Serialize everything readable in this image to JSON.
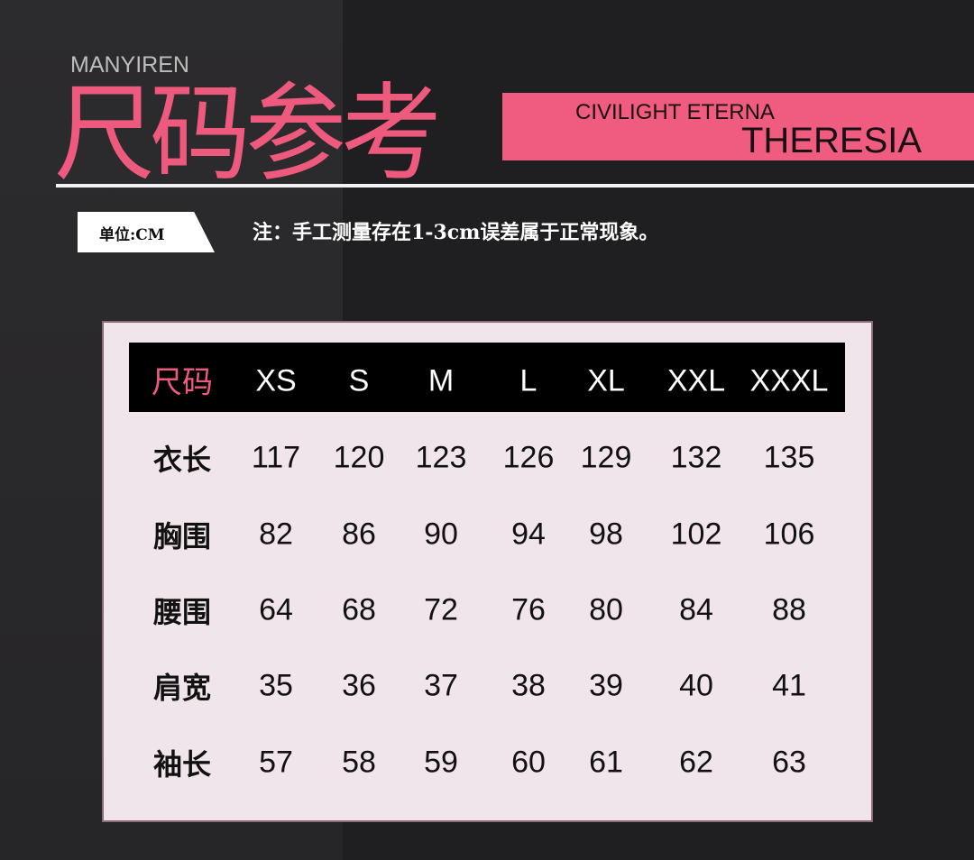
{
  "brand": "MANYIREN",
  "title": "尺码参考",
  "banner": {
    "line1": "CIVILIGHT ETERNA",
    "line2": "THERESIA"
  },
  "unit_label": "单位:CM",
  "note": "注：手工测量存在1-3cm误差属于正常现象。",
  "colors": {
    "accent": "#ee5a7d",
    "background": "#1f1e20",
    "card": "#f1e5ec"
  },
  "table": {
    "header_label": "尺码",
    "sizes": [
      "XS",
      "S",
      "M",
      "L",
      "XL",
      "XXL",
      "XXXL"
    ],
    "rows": [
      {
        "label": "衣长",
        "values": [
          "117",
          "120",
          "123",
          "126",
          "129",
          "132",
          "135"
        ]
      },
      {
        "label": "胸围",
        "values": [
          "82",
          "86",
          "90",
          "94",
          "98",
          "102",
          "106"
        ]
      },
      {
        "label": "腰围",
        "values": [
          "64",
          "68",
          "72",
          "76",
          "80",
          "84",
          "88"
        ]
      },
      {
        "label": "肩宽",
        "values": [
          "35",
          "36",
          "37",
          "38",
          "39",
          "40",
          "41"
        ]
      },
      {
        "label": "袖长",
        "values": [
          "57",
          "58",
          "59",
          "60",
          "61",
          "62",
          "63"
        ]
      }
    ]
  }
}
